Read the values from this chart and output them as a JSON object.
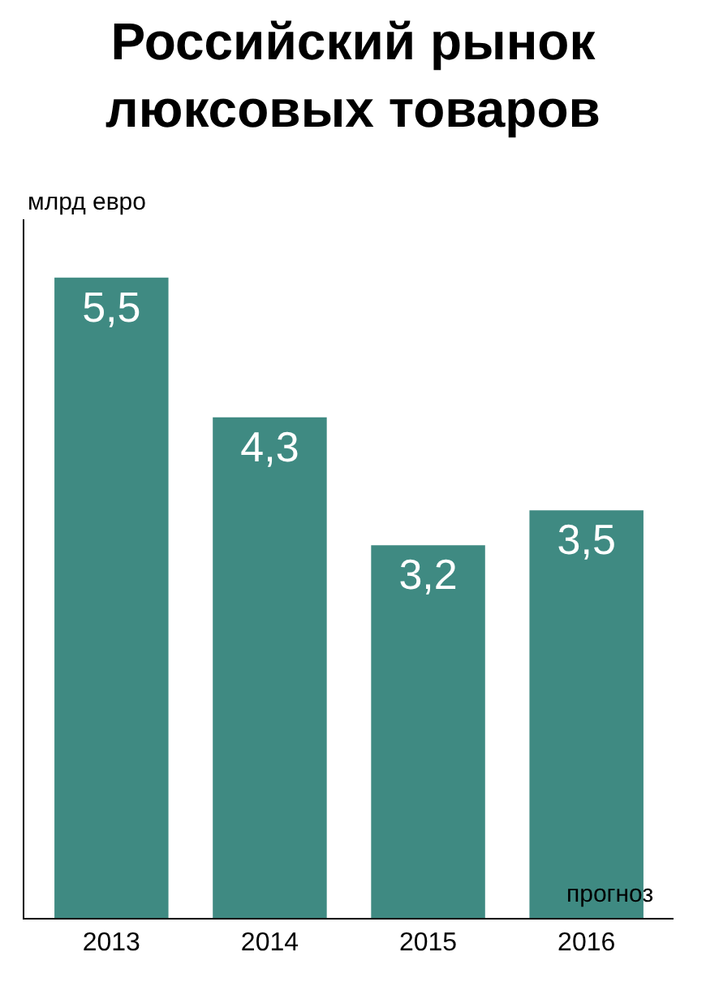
{
  "chart_data": {
    "type": "bar",
    "title": "Российский рынок\nлюксовых товаров",
    "ylabel": "млрд евро",
    "categories": [
      "2013",
      "2014",
      "2015",
      "2016"
    ],
    "values": [
      5.5,
      4.3,
      3.2,
      3.5
    ],
    "value_labels": [
      "5,5",
      "4,3",
      "3,2",
      "3,5"
    ],
    "color": "#3f8a82",
    "ylim": [
      0,
      6
    ],
    "tick_labels": "x",
    "grid": false,
    "legend": false,
    "annotations": [
      "прогноз"
    ]
  }
}
